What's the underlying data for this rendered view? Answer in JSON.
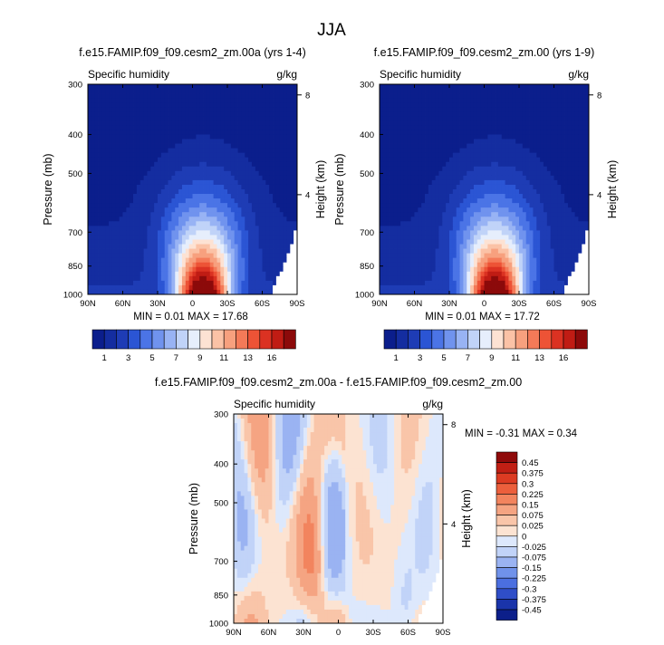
{
  "figure": {
    "title": "JJA"
  },
  "colors": {
    "full_levels": [
      "#0b1e8c",
      "#142da0",
      "#1e3cb5",
      "#2b55d4",
      "#4b74e6",
      "#7093ee",
      "#98b3f4",
      "#c0d3f8",
      "#e6eefc",
      "#fde2d3",
      "#fbc2a6",
      "#f7a07e",
      "#f47a58",
      "#ed5336",
      "#db3222",
      "#c01c14",
      "#8c0a0a"
    ],
    "diff_levels": [
      "#0c1f8a",
      "#1a34aa",
      "#2f4ec8",
      "#4b6fe0",
      "#7092ea",
      "#9ab3f2",
      "#c1d3f8",
      "#dde8fc",
      "#fce3d2",
      "#f9c5a9",
      "#f5a482",
      "#f2845e",
      "#ec5f3c",
      "#dc3b22",
      "#c11f14",
      "#8f0a0a"
    ]
  },
  "chart_data": [
    {
      "type": "heatmap",
      "title": "f.e15.FAMIP.f09_f09.cesm2_zm.00a (yrs 1-4)",
      "left_label": "Specific humidity",
      "right_label": "g/kg",
      "ylabel": "Pressure (mb)",
      "ylabel_right": "Height (km)",
      "x_ticks": [
        "90N",
        "60N",
        "30N",
        "0",
        "30S",
        "60S",
        "90S"
      ],
      "y_ticks": [
        "300",
        "400",
        "500",
        "700",
        "850",
        "1000"
      ],
      "y_ticks_right": [
        "8",
        "4"
      ],
      "stats": "MIN =  0.01   MAX = 17.68",
      "min": 0.01,
      "max": 17.68,
      "colorbar_labels": [
        "1",
        "3",
        "5",
        "7",
        "9",
        "11",
        "13",
        "16"
      ]
    },
    {
      "type": "heatmap",
      "title": "f.e15.FAMIP.f09_f09.cesm2_zm.00 (yrs 1-9)",
      "left_label": "Specific humidity",
      "right_label": "g/kg",
      "ylabel": "Pressure (mb)",
      "ylabel_right": "Height (km)",
      "x_ticks": [
        "90N",
        "60N",
        "30N",
        "0",
        "30S",
        "60S",
        "90S"
      ],
      "y_ticks": [
        "300",
        "400",
        "500",
        "700",
        "850",
        "1000"
      ],
      "y_ticks_right": [
        "8",
        "4"
      ],
      "stats": "MIN =  0.01   MAX = 17.72",
      "min": 0.01,
      "max": 17.72,
      "colorbar_labels": [
        "1",
        "3",
        "5",
        "7",
        "9",
        "11",
        "13",
        "16"
      ]
    },
    {
      "type": "heatmap",
      "title": "f.e15.FAMIP.f09_f09.cesm2_zm.00a - f.e15.FAMIP.f09_f09.cesm2_zm.00",
      "left_label": "Specific humidity",
      "right_label": "g/kg",
      "ylabel": "Pressure (mb)",
      "ylabel_right": "Height (km)",
      "x_ticks": [
        "90N",
        "60N",
        "30N",
        "0",
        "30S",
        "60S",
        "90S"
      ],
      "y_ticks": [
        "300",
        "400",
        "500",
        "700",
        "850",
        "1000"
      ],
      "y_ticks_right": [
        "8",
        "4"
      ],
      "stats": "MIN = -0.31   MAX =  0.34",
      "min": -0.31,
      "max": 0.34,
      "colorbar_labels": [
        "0.45",
        "0.375",
        "0.3",
        "0.225",
        "0.15",
        "0.075",
        "0.025",
        "0",
        "-0.025",
        "-0.075",
        "-0.15",
        "-0.225",
        "-0.3",
        "-0.375",
        "-0.45"
      ]
    }
  ]
}
